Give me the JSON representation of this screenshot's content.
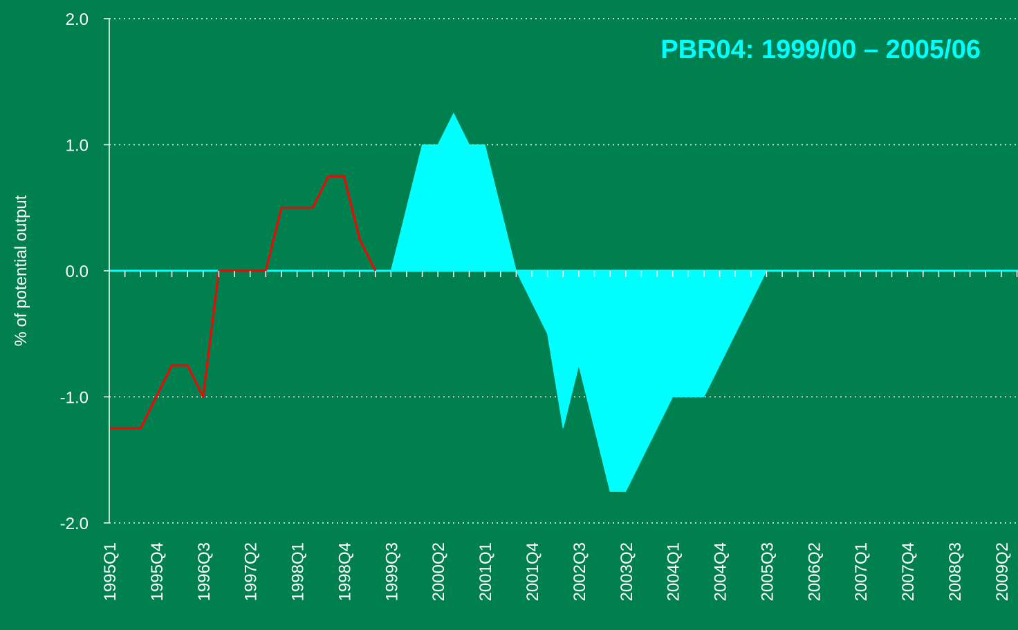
{
  "chart_data": {
    "type": "area",
    "title": "PBR04: 1999/00 – 2005/06",
    "y_label": "% of potential output",
    "categories": [
      "1995Q1",
      null,
      null,
      "1995Q4",
      null,
      null,
      "1996Q3",
      null,
      null,
      "1997Q2",
      null,
      null,
      "1998Q1",
      null,
      null,
      "1998Q4",
      null,
      null,
      "1999Q3",
      null,
      null,
      "2000Q2",
      null,
      null,
      "2001Q1",
      null,
      null,
      "2001Q4",
      null,
      null,
      "2002Q3",
      null,
      null,
      "2003Q2",
      null,
      null,
      "2004Q1",
      null,
      null,
      "2004Q4",
      null,
      null,
      "2005Q3",
      null,
      null,
      "2006Q2",
      null,
      null,
      "2007Q1",
      null,
      null,
      "2007Q4",
      null,
      null,
      "2008Q3",
      null,
      null,
      "2009Q2",
      null
    ],
    "series": [
      {
        "type": "area",
        "color": "#00ffff",
        "values": [
          0,
          0,
          0,
          0,
          0,
          0,
          0,
          0,
          0,
          0,
          0,
          0,
          0,
          0,
          0,
          0,
          0,
          0,
          0,
          0.5,
          1.0,
          1.0,
          1.25,
          1.0,
          1.0,
          0.5,
          0,
          -0.25,
          -0.5,
          -1.25,
          -0.75,
          -1.25,
          -1.75,
          -1.75,
          -1.5,
          -1.25,
          -1.0,
          -1.0,
          -1.0,
          -0.75,
          -0.5,
          -0.25,
          0,
          0,
          0,
          0,
          0,
          0,
          0,
          0,
          0,
          0,
          0,
          0,
          0,
          0,
          0,
          0,
          0
        ]
      },
      {
        "type": "line",
        "color": "#ff0000",
        "values": [
          -1.25,
          -1.25,
          -1.25,
          -1.0,
          -0.75,
          -0.75,
          -1.0,
          0,
          0,
          0,
          0,
          0.5,
          0.5,
          0.5,
          0.75,
          0.75,
          0.25,
          0,
          null,
          null,
          null,
          null,
          null,
          null,
          null,
          null,
          null,
          null,
          null,
          null,
          null,
          null,
          null,
          null,
          null,
          null,
          null,
          null,
          null,
          null,
          null,
          null,
          null,
          null,
          null,
          null,
          null,
          null,
          null,
          null,
          null,
          null,
          null,
          null,
          null,
          null,
          null,
          null,
          null
        ]
      }
    ],
    "ylim": [
      -2,
      2
    ],
    "yticks": [
      {
        "value": -2,
        "label": "-2.0"
      },
      {
        "value": -1,
        "label": "-1.0"
      },
      {
        "value": 0,
        "label": "0.0"
      },
      {
        "value": 1,
        "label": "1.0"
      },
      {
        "value": 2,
        "label": "2.0"
      }
    ],
    "grid": true
  }
}
